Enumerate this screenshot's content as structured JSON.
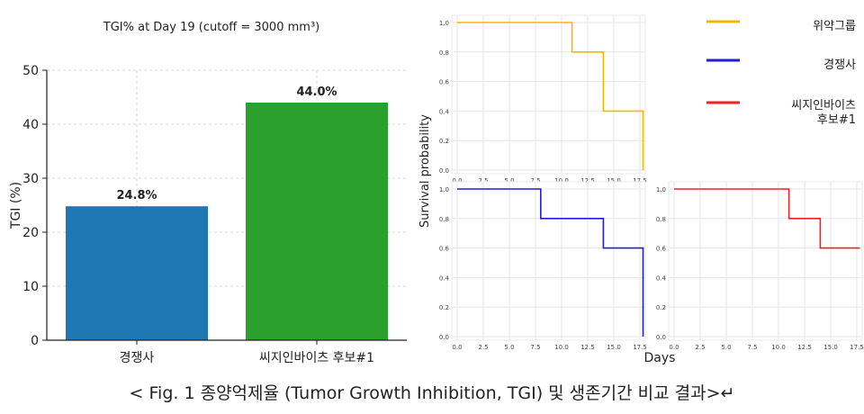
{
  "caption": "< Fig. 1 종양억제율 (Tumor Growth Inhibition, TGI) 및 생존기간 비교 결과>↵",
  "chart_data": [
    {
      "type": "bar",
      "title": "TGI% at Day 19 (cutoff = 3000 mm³)",
      "xlabel": "",
      "ylabel": "TGI (%)",
      "ylim": [
        0,
        50
      ],
      "yticks": [
        0,
        10,
        20,
        30,
        40,
        50
      ],
      "grid": true,
      "categories": [
        "경쟁사",
        "씨지인바이츠 후보#1"
      ],
      "values": [
        24.8,
        44.0
      ],
      "data_labels": [
        "24.8%",
        "44.0%"
      ],
      "colors": [
        "#1f77b4",
        "#2ca02c"
      ]
    },
    {
      "type": "line",
      "subtype": "step",
      "shared_xlabel": "Days",
      "shared_ylabel": "Survival probability",
      "xlim": [
        0,
        17.5
      ],
      "xticks": [
        "0.0",
        "2.5",
        "5.0",
        "7.5",
        "10.0",
        "12.5",
        "15.0",
        "17.5"
      ],
      "ylim": [
        0,
        1.0
      ],
      "yticks": [
        "0.0",
        "0.2",
        "0.4",
        "0.6",
        "0.8",
        "1.0"
      ],
      "grid": true,
      "legend_position": "top-right",
      "series": [
        {
          "name": "위약그룹",
          "color": "#f5b800",
          "x": [
            0,
            11,
            11,
            14,
            14,
            18,
            18
          ],
          "y": [
            1.0,
            1.0,
            0.8,
            0.8,
            0.4,
            0.4,
            0.0
          ]
        },
        {
          "name": "경쟁사",
          "color": "#1f1fd0",
          "x": [
            0,
            8,
            8,
            14,
            14,
            18,
            18
          ],
          "y": [
            1.0,
            1.0,
            0.8,
            0.8,
            0.6,
            0.6,
            0.0
          ]
        },
        {
          "name": "씨지인바이츠 후보#1",
          "color": "#ee2222",
          "x": [
            0,
            11,
            11,
            14,
            14,
            18
          ],
          "y": [
            1.0,
            1.0,
            0.8,
            0.8,
            0.6,
            0.6
          ]
        }
      ]
    }
  ]
}
